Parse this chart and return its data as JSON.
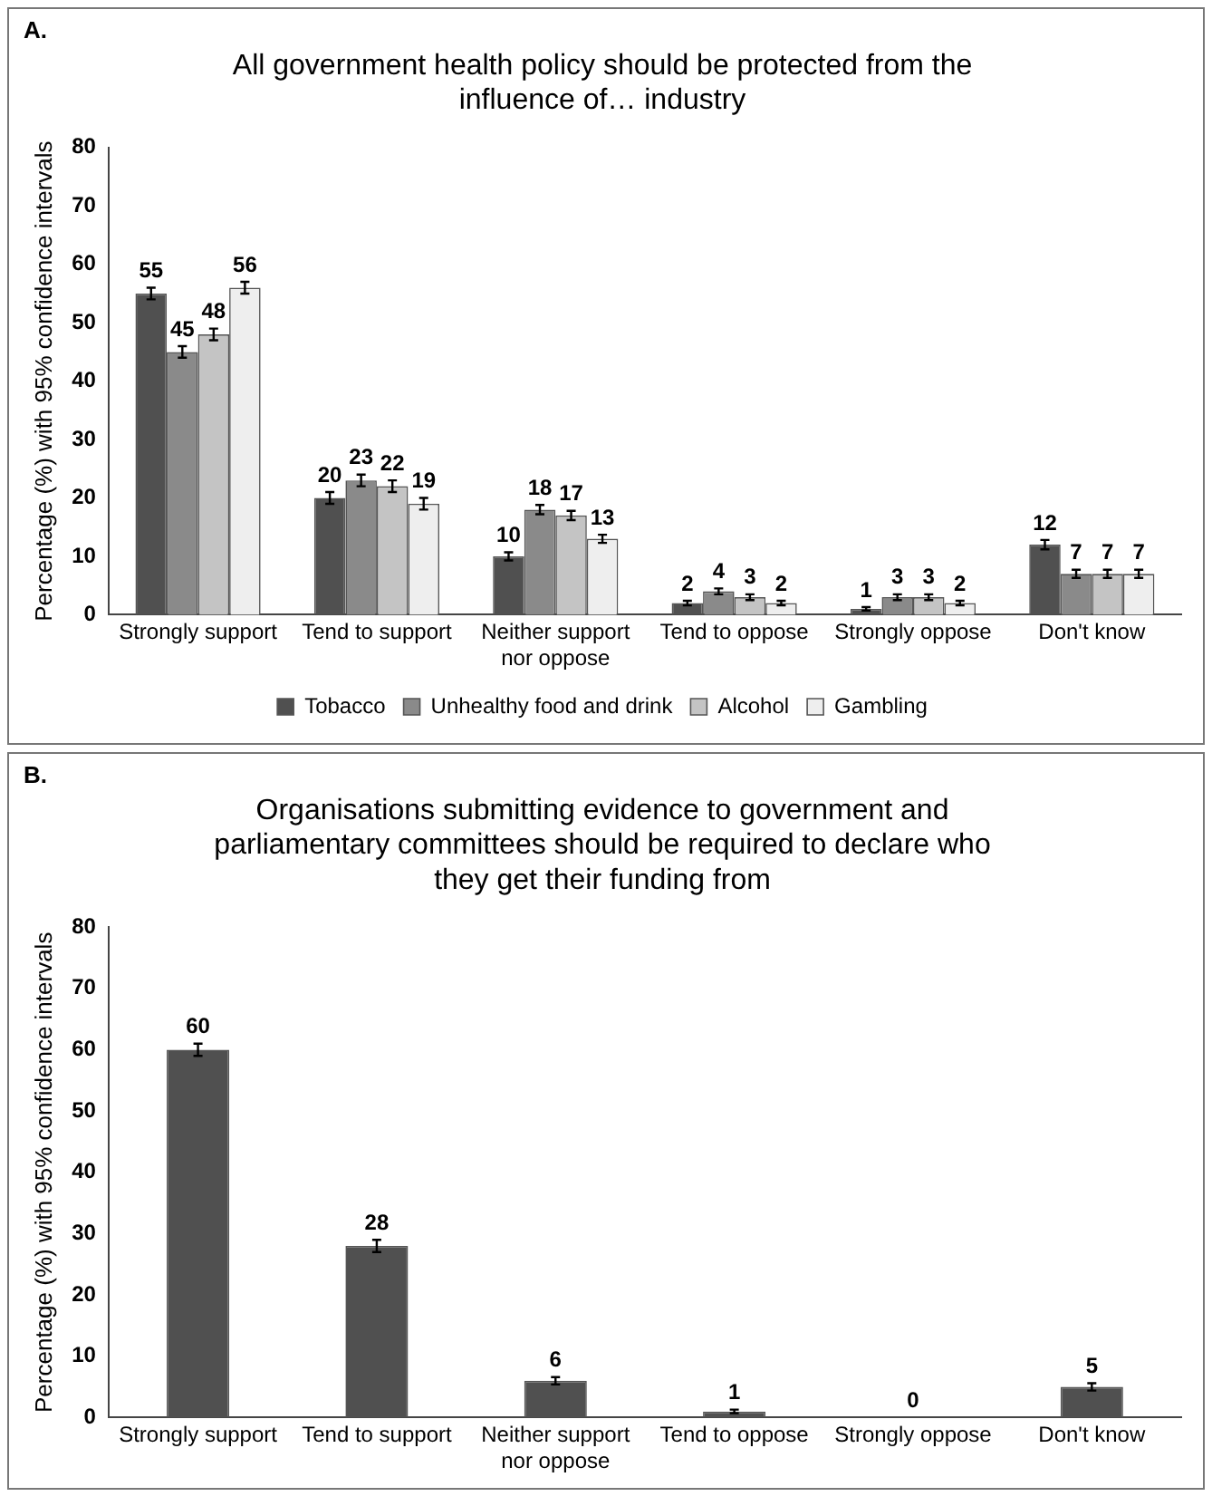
{
  "chart_data": [
    {
      "type": "bar",
      "title": "All government health policy should be protected from the influence of… industry",
      "ylabel": "Percentage (%) with 95% confidence intervals",
      "annotations": [
        "A."
      ],
      "categories": [
        "Strongly support",
        "Tend to support",
        "Neither support nor oppose",
        "Tend to oppose",
        "Strongly oppose",
        "Don't know"
      ],
      "ylim": [
        0,
        80
      ],
      "yticks": [
        0,
        10,
        20,
        30,
        40,
        50,
        60,
        70,
        80
      ],
      "grid": false,
      "legend": "bottom",
      "data_labels": true,
      "series": [
        {
          "name": "Tobacco",
          "color": "#505050",
          "values": [
            55,
            20,
            10,
            2,
            1,
            12
          ],
          "errors": [
            1,
            1,
            0.7,
            0.4,
            0.3,
            0.8
          ]
        },
        {
          "name": "Unhealthy food and drink",
          "color": "#8a8a8a",
          "values": [
            45,
            23,
            18,
            4,
            3,
            7
          ],
          "errors": [
            1,
            1,
            0.8,
            0.5,
            0.5,
            0.7
          ]
        },
        {
          "name": "Alcohol",
          "color": "#c4c4c4",
          "values": [
            48,
            22,
            17,
            3,
            3,
            7
          ],
          "errors": [
            1,
            1,
            0.8,
            0.5,
            0.5,
            0.7
          ]
        },
        {
          "name": "Gambling",
          "color": "#eeeeee",
          "values": [
            56,
            19,
            13,
            2,
            2,
            7
          ],
          "errors": [
            1,
            1,
            0.7,
            0.4,
            0.4,
            0.7
          ]
        }
      ]
    },
    {
      "type": "bar",
      "title": "Organisations submitting evidence to government and parliamentary committees should be required to declare who they get their funding from",
      "ylabel": "Percentage (%) with 95% confidence intervals",
      "annotations": [
        "B."
      ],
      "categories": [
        "Strongly support",
        "Tend to support",
        "Neither support nor oppose",
        "Tend to oppose",
        "Strongly oppose",
        "Don't know"
      ],
      "ylim": [
        0,
        80
      ],
      "yticks": [
        0,
        10,
        20,
        30,
        40,
        50,
        60,
        70,
        80
      ],
      "grid": false,
      "legend": false,
      "data_labels": true,
      "series": [
        {
          "color": "#505050",
          "values": [
            60,
            28,
            6,
            1,
            0,
            5
          ],
          "errors": [
            1,
            1,
            0.6,
            0.3,
            null,
            0.6
          ]
        }
      ]
    }
  ]
}
